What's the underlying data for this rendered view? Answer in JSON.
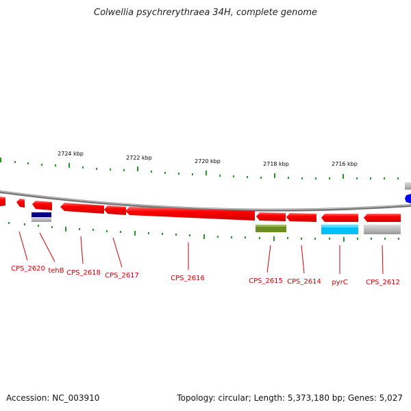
{
  "title": "Colwellia psychrerythraea 34H, complete genome",
  "accession": "Accession: NC_003910",
  "summary": "Topology: circular; Length: 5,373,180 bp; Genes: 5,027",
  "colors": {
    "gene": "#ff0000",
    "gene_label": "#cc0000",
    "backbone": "#888888",
    "ticks": "#229922",
    "tehB_feature": "#000080",
    "CPS_2615_feature": "#6b8e23",
    "pyrC_feature": "#00bfff",
    "CPS_2612_feature": "#bbbbbb"
  },
  "scale_labels": [
    "2724 kbp",
    "2722 kbp",
    "2720 kbp",
    "2718 kbp",
    "2716 kbp"
  ],
  "genes": [
    {
      "id": "CPS_2620",
      "label": "CPS_2620"
    },
    {
      "id": "tehB",
      "label": "tehB"
    },
    {
      "id": "CPS_2618",
      "label": "CPS_2618"
    },
    {
      "id": "CPS_2617",
      "label": "CPS_2617"
    },
    {
      "id": "CPS_2616",
      "label": "CPS_2616"
    },
    {
      "id": "CPS_2615",
      "label": "CPS_2615"
    },
    {
      "id": "CPS_2614",
      "label": "CPS_2614"
    },
    {
      "id": "pyrC",
      "label": "pyrC"
    },
    {
      "id": "CPS_2612",
      "label": "CPS_2612"
    }
  ]
}
